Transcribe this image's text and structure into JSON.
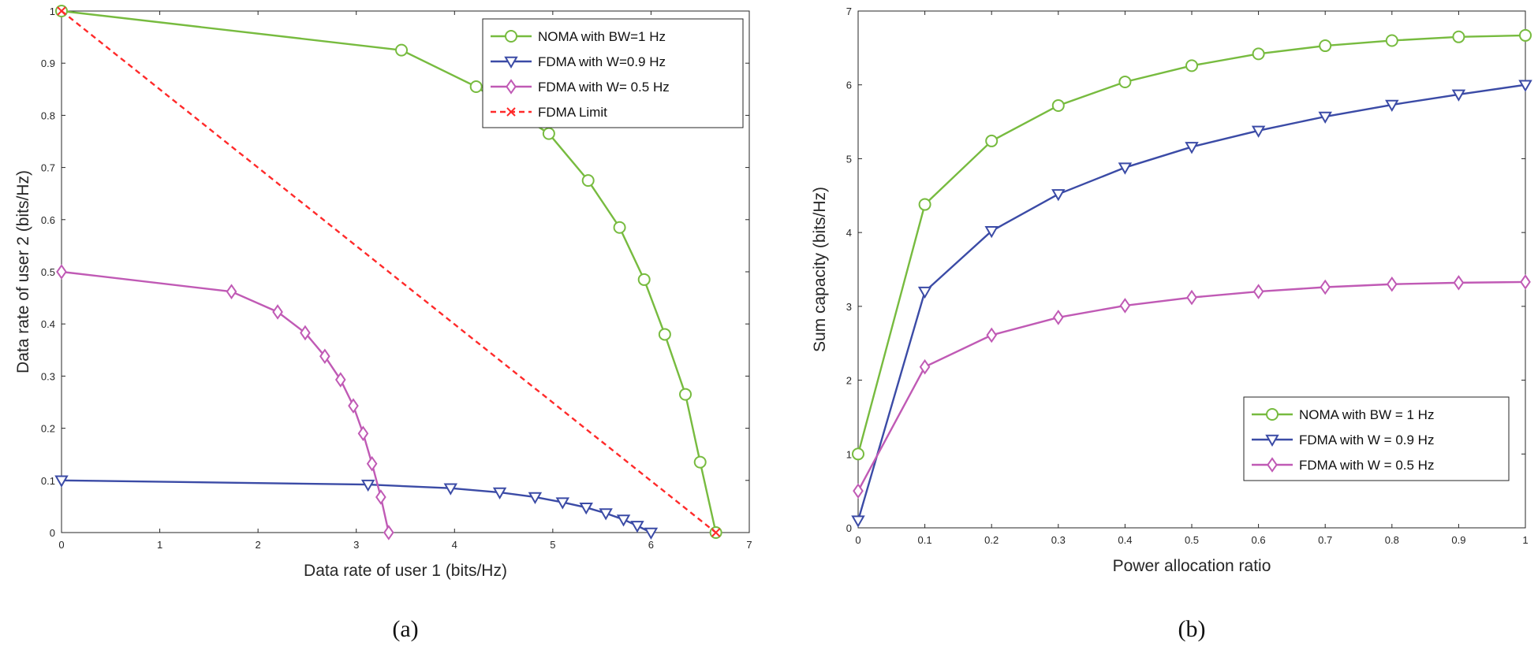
{
  "chart_data": [
    {
      "id": "a",
      "type": "line",
      "caption": "(a)",
      "xlabel": "Data rate of user 1 (bits/Hz)",
      "ylabel": "Data rate of user 2 (bits/Hz)",
      "xlim": [
        0,
        7
      ],
      "ylim": [
        0,
        1
      ],
      "xticks": [
        0,
        1,
        2,
        3,
        4,
        5,
        6,
        7
      ],
      "yticks": [
        0,
        0.1,
        0.2,
        0.3,
        0.4,
        0.5,
        0.6,
        0.7,
        0.8,
        0.9,
        1
      ],
      "legend_position": "top-right",
      "series": [
        {
          "name": "NOMA with BW=1 Hz",
          "color": "#77bb3f",
          "marker": "circle",
          "line": "solid",
          "x": [
            0,
            3.46,
            4.22,
            4.96,
            5.36,
            5.68,
            5.93,
            6.14,
            6.35,
            6.5,
            6.66
          ],
          "y": [
            1.0,
            0.925,
            0.855,
            0.765,
            0.675,
            0.585,
            0.485,
            0.38,
            0.265,
            0.135,
            0.0
          ]
        },
        {
          "name": "FDMA with W=0.9 Hz",
          "color": "#3b4ba6",
          "marker": "triangle-down",
          "line": "solid",
          "x": [
            0,
            3.12,
            3.96,
            4.46,
            4.82,
            5.1,
            5.34,
            5.54,
            5.72,
            5.86,
            6.0
          ],
          "y": [
            0.1,
            0.092,
            0.085,
            0.077,
            0.068,
            0.058,
            0.048,
            0.037,
            0.025,
            0.013,
            0.0
          ]
        },
        {
          "name": "FDMA with W= 0.5 Hz",
          "color": "#c05ab5",
          "marker": "diamond",
          "line": "solid",
          "x": [
            0,
            1.73,
            2.2,
            2.48,
            2.68,
            2.84,
            2.97,
            3.07,
            3.16,
            3.25,
            3.33
          ],
          "y": [
            0.5,
            0.462,
            0.423,
            0.383,
            0.338,
            0.293,
            0.243,
            0.19,
            0.132,
            0.068,
            0.0
          ]
        },
        {
          "name": "FDMA Limit",
          "color": "#ff2a2a",
          "marker": "x",
          "line": "dashed",
          "x": [
            0,
            6.66
          ],
          "y": [
            1.0,
            0.0
          ]
        }
      ]
    },
    {
      "id": "b",
      "type": "line",
      "caption": "(b)",
      "xlabel": "Power allocation ratio",
      "ylabel": "Sum capacity (bits/Hz)",
      "xlim": [
        0,
        1
      ],
      "ylim": [
        0,
        7
      ],
      "xticks": [
        0,
        0.1,
        0.2,
        0.3,
        0.4,
        0.5,
        0.6,
        0.7,
        0.8,
        0.9,
        1
      ],
      "yticks": [
        0,
        1,
        2,
        3,
        4,
        5,
        6,
        7
      ],
      "legend_position": "bottom-right",
      "series": [
        {
          "name": "NOMA with BW = 1 Hz",
          "color": "#77bb3f",
          "marker": "circle",
          "line": "solid",
          "x": [
            0,
            0.1,
            0.2,
            0.3,
            0.4,
            0.5,
            0.6,
            0.7,
            0.8,
            0.9,
            1.0
          ],
          "y": [
            1.0,
            4.38,
            5.24,
            5.72,
            6.04,
            6.26,
            6.42,
            6.53,
            6.6,
            6.65,
            6.67
          ]
        },
        {
          "name": "FDMA with W = 0.9 Hz",
          "color": "#3b4ba6",
          "marker": "triangle-down",
          "line": "solid",
          "x": [
            0,
            0.1,
            0.2,
            0.3,
            0.4,
            0.5,
            0.6,
            0.7,
            0.8,
            0.9,
            1.0
          ],
          "y": [
            0.1,
            3.2,
            4.02,
            4.52,
            4.88,
            5.16,
            5.38,
            5.57,
            5.73,
            5.87,
            6.0
          ]
        },
        {
          "name": "FDMA with W = 0.5 Hz",
          "color": "#c05ab5",
          "marker": "diamond",
          "line": "solid",
          "x": [
            0,
            0.1,
            0.2,
            0.3,
            0.4,
            0.5,
            0.6,
            0.7,
            0.8,
            0.9,
            1.0
          ],
          "y": [
            0.5,
            2.18,
            2.61,
            2.85,
            3.01,
            3.12,
            3.2,
            3.26,
            3.3,
            3.32,
            3.33
          ]
        }
      ]
    }
  ]
}
